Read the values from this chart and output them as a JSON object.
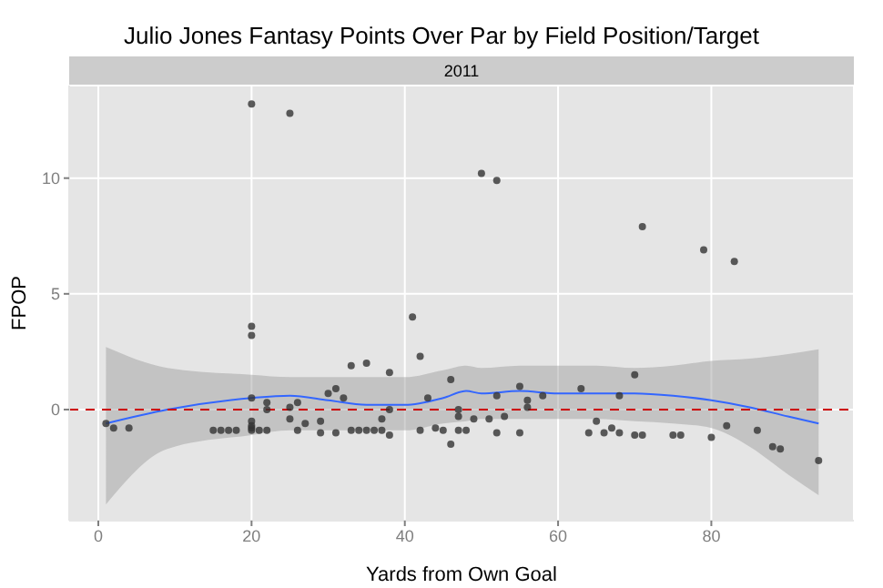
{
  "chart_data": {
    "type": "scatter",
    "title": "Julio Jones Fantasy Points Over Par by Field Position/Target",
    "subtitle": "2011",
    "xlabel": "Yards from Own Goal",
    "ylabel": "FPOP",
    "xlim": [
      -3.8,
      98.6
    ],
    "xticks": [
      0,
      20,
      40,
      60,
      80
    ],
    "ylim": [
      -4.8,
      14
    ],
    "yticks": [
      0,
      5,
      10
    ],
    "grid": true,
    "ref_lines": [
      {
        "axis": "y",
        "value": 0,
        "color": "#cc0000",
        "line_style": "dashed"
      }
    ],
    "series": [
      {
        "type": "scatter",
        "color": "#333333",
        "x": [
          1,
          2,
          4,
          15,
          16,
          17,
          18,
          20,
          20,
          20,
          20,
          20,
          20,
          20,
          20,
          21,
          22,
          22,
          22,
          25,
          25,
          25,
          26,
          26,
          27,
          29,
          29,
          30,
          31,
          31,
          32,
          33,
          33,
          34,
          35,
          35,
          36,
          37,
          37,
          38,
          38,
          38,
          41,
          42,
          42,
          43,
          44,
          45,
          46,
          46,
          47,
          47,
          47,
          48,
          49,
          50,
          51,
          52,
          52,
          52,
          53,
          55,
          55,
          56,
          56,
          58,
          63,
          64,
          65,
          66,
          67,
          68,
          68,
          70,
          70,
          71,
          71,
          75,
          76,
          79,
          80,
          82,
          83,
          86,
          88,
          89,
          94
        ],
        "values": [
          -0.6,
          -0.8,
          -0.8,
          -0.9,
          -0.9,
          -0.9,
          -0.9,
          13.2,
          3.6,
          3.2,
          0.5,
          -0.5,
          -0.7,
          -0.8,
          -0.9,
          -0.9,
          -0.9,
          0.3,
          0,
          12.8,
          0.1,
          -0.4,
          0.3,
          -0.9,
          -0.6,
          -0.5,
          -1.0,
          0.7,
          0.9,
          -1.0,
          0.5,
          1.9,
          -0.9,
          -0.9,
          2.0,
          -0.9,
          -0.9,
          -0.9,
          -0.4,
          1.6,
          0,
          -1.1,
          4.0,
          2.3,
          -0.9,
          0.5,
          -0.8,
          -0.9,
          1.3,
          -1.5,
          0,
          -0.3,
          -0.9,
          -0.9,
          -0.4,
          10.2,
          -0.4,
          9.9,
          0.6,
          -1.0,
          -0.3,
          1.0,
          -1.0,
          0.4,
          0.1,
          0.6,
          0.9,
          -1.0,
          -0.5,
          -1.0,
          -0.8,
          0.6,
          -1.0,
          1.5,
          -1.1,
          -1.1,
          7.9,
          -1.1,
          -1.1,
          6.9,
          -1.2,
          -0.7,
          6.4,
          -0.9,
          -1.6,
          -1.7,
          -2.2
        ]
      },
      {
        "type": "line",
        "color": "#3366ff",
        "line_style": "solid",
        "x": [
          1,
          9,
          20,
          25,
          30,
          35,
          40,
          45,
          48,
          50,
          55,
          60,
          65,
          70,
          75,
          80,
          85,
          90,
          94
        ],
        "values": [
          -0.6,
          0,
          0.5,
          0.6,
          0.4,
          0.2,
          0.2,
          0.5,
          0.8,
          0.7,
          0.8,
          0.7,
          0.7,
          0.7,
          0.6,
          0.4,
          0.1,
          -0.3,
          -0.6
        ],
        "lower": [
          -4.1,
          -1.7,
          -1.1,
          -0.9,
          -0.9,
          -0.9,
          -0.9,
          -0.6,
          -0.5,
          -0.4,
          -0.4,
          -0.4,
          -0.4,
          -0.5,
          -0.6,
          -0.8,
          -1.6,
          -2.8,
          -3.7
        ],
        "upper": [
          2.7,
          1.8,
          1.5,
          1.4,
          1.4,
          1.4,
          1.4,
          1.7,
          1.9,
          1.8,
          1.9,
          1.9,
          1.9,
          1.8,
          1.9,
          2.1,
          2.2,
          2.4,
          2.6
        ]
      }
    ]
  }
}
